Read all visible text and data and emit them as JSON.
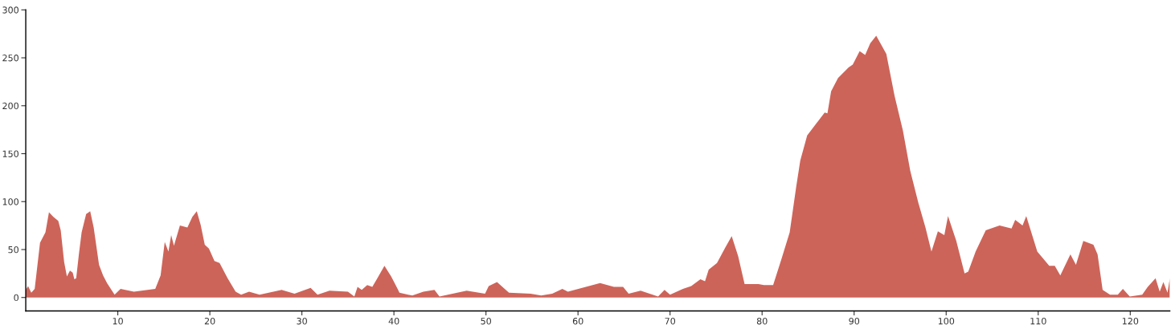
{
  "chart_data": {
    "type": "area",
    "xlim": [
      0,
      124.3
    ],
    "ylim": [
      -14,
      300
    ],
    "xticks": [
      10,
      20,
      30,
      40,
      50,
      60,
      70,
      80,
      90,
      100,
      110,
      120
    ],
    "yticks": [
      0,
      50,
      100,
      150,
      200,
      250,
      300
    ],
    "grid": false,
    "legend": false,
    "series": [
      {
        "color": "#cd6459",
        "x": [
          0,
          0.25,
          0.6,
          0.97,
          1.55,
          2.14,
          2.52,
          3.0,
          3.53,
          3.8,
          4.17,
          4.47,
          4.8,
          5.1,
          5.28,
          5.48,
          5.77,
          6.07,
          6.56,
          7.0,
          7.38,
          7.96,
          8.4,
          8.83,
          9.65,
          10.3,
          11.75,
          14.07,
          14.65,
          15.1,
          15.5,
          15.8,
          16.1,
          16.75,
          17.56,
          18.1,
          18.58,
          19.0,
          19.45,
          19.9,
          20.5,
          21.06,
          21.93,
          22.8,
          23.4,
          24.26,
          25.4,
          27.8,
          29.2,
          30.95,
          31.7,
          33.0,
          35.0,
          35.7,
          36.05,
          36.5,
          37.1,
          37.65,
          38.2,
          38.97,
          39.7,
          40.4,
          40.6,
          42.0,
          43.2,
          44.4,
          44.95,
          47.9,
          49.9,
          50.3,
          51.2,
          52.5,
          54.85,
          56.0,
          57.2,
          58.3,
          58.9,
          62.4,
          63.9,
          64.9,
          65.5,
          66.8,
          68.7,
          69.4,
          70.0,
          71.4,
          72.3,
          73.3,
          73.8,
          74.2,
          75.1,
          76.0,
          76.7,
          77.4,
          78.1,
          79.6,
          80.2,
          81.2,
          82.1,
          83.0,
          83.7,
          84.15,
          84.9,
          85.3,
          86.8,
          87.1,
          87.5,
          88.25,
          89.4,
          89.85,
          90.6,
          91.2,
          91.75,
          92.4,
          93.5,
          94.4,
          95.3,
          96.1,
          97.0,
          97.75,
          98.4,
          99.1,
          99.8,
          100.2,
          101.1,
          102.0,
          102.4,
          103.2,
          104.3,
          105.8,
          107.1,
          107.5,
          108.3,
          108.7,
          109.9,
          111.2,
          111.8,
          112.4,
          113.5,
          114.1,
          114.9,
          116.0,
          116.45,
          117.0,
          117.8,
          118.65,
          119.2,
          119.95,
          121.3,
          121.9,
          122.75,
          123.2,
          123.6,
          124.05,
          124.3
        ],
        "values": [
          8,
          12,
          5,
          9,
          57,
          68,
          89,
          84,
          80,
          70,
          37,
          22,
          28,
          26,
          19,
          20,
          45,
          68,
          87,
          90,
          73,
          34,
          23,
          15,
          3,
          9,
          6,
          9,
          23,
          58,
          48,
          65,
          54,
          75,
          73,
          84,
          90,
          76,
          55,
          51,
          38,
          36,
          20,
          6,
          3,
          6,
          3,
          8,
          4,
          10,
          3,
          7,
          6,
          1,
          11,
          8,
          13,
          11,
          20,
          33,
          22,
          9,
          5,
          2,
          6,
          8,
          1,
          7,
          4,
          12,
          16,
          5,
          4,
          2,
          4,
          9,
          6,
          15,
          11,
          11,
          4,
          7,
          1,
          8,
          3,
          9,
          12,
          19,
          17,
          29,
          36,
          52,
          64,
          43,
          14,
          14,
          13,
          13,
          40,
          68,
          115,
          143,
          169,
          174,
          193,
          192,
          215,
          229,
          240,
          243,
          257,
          253,
          265,
          273,
          254,
          210,
          174,
          132,
          98,
          73,
          48,
          69,
          65,
          85,
          59,
          25,
          27,
          48,
          70,
          75,
          72,
          81,
          75,
          85,
          48,
          33,
          33,
          23,
          45,
          34,
          59,
          55,
          45,
          8,
          3,
          3,
          9,
          1,
          3,
          11,
          20,
          6,
          16,
          5,
          20
        ]
      }
    ]
  }
}
